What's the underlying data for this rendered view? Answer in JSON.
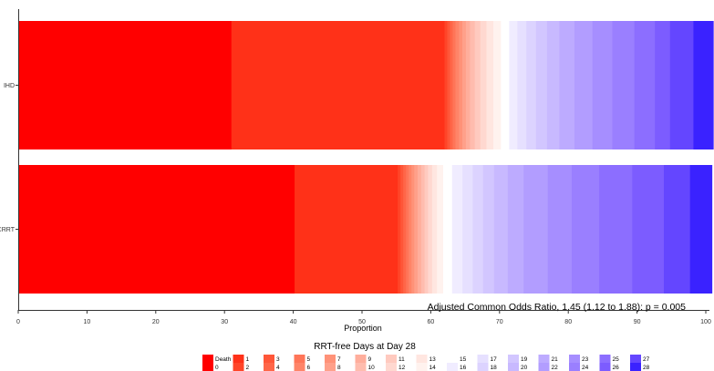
{
  "chart_data": {
    "type": "bar",
    "orientation": "horizontal",
    "stacked": true,
    "xlabel": "Proportion",
    "xlim": [
      0,
      100
    ],
    "xticks": [
      0,
      10,
      20,
      30,
      40,
      50,
      60,
      70,
      80,
      90,
      100
    ],
    "categories": [
      "IHD",
      "CRRT"
    ],
    "grid": false,
    "legend_title": "RRT-free Days at Day 28",
    "legend_position": "bottom",
    "annotation": "Adjusted Common Odds Ratio, 1.45 (1.12 to 1.88): p = 0.005",
    "series": [
      {
        "name": "Death",
        "color": "#FF0000",
        "values": [
          31.0,
          40.2
        ]
      },
      {
        "name": "0",
        "color": "#FF0000",
        "values": [
          0.0,
          0.0
        ]
      },
      {
        "name": "1",
        "color": "#FF3118",
        "values": [
          31.0,
          15.0
        ]
      },
      {
        "name": "2",
        "color": "#FF4528",
        "values": [
          0.4,
          0.4
        ]
      },
      {
        "name": "3",
        "color": "#FF5638",
        "values": [
          0.4,
          0.4
        ]
      },
      {
        "name": "4",
        "color": "#FF6648",
        "values": [
          0.4,
          0.4
        ]
      },
      {
        "name": "5",
        "color": "#FF7558",
        "values": [
          0.4,
          0.4
        ]
      },
      {
        "name": "6",
        "color": "#FF8468",
        "values": [
          0.5,
          0.4
        ]
      },
      {
        "name": "7",
        "color": "#FF9278",
        "values": [
          0.5,
          0.4
        ]
      },
      {
        "name": "8",
        "color": "#FFA08A",
        "values": [
          0.5,
          0.5
        ]
      },
      {
        "name": "9",
        "color": "#FFAE9C",
        "values": [
          0.6,
          0.5
        ]
      },
      {
        "name": "10",
        "color": "#FFBCAE",
        "values": [
          0.7,
          0.5
        ]
      },
      {
        "name": "11",
        "color": "#FFCABF",
        "values": [
          0.8,
          0.5
        ]
      },
      {
        "name": "12",
        "color": "#FFD8D0",
        "values": [
          0.9,
          0.6
        ]
      },
      {
        "name": "13",
        "color": "#FFE6E0",
        "values": [
          1.0,
          0.7
        ]
      },
      {
        "name": "14",
        "color": "#FFF2EE",
        "values": [
          1.1,
          0.9
        ]
      },
      {
        "name": "15",
        "color": "#FFFFFF",
        "values": [
          1.2,
          1.3
        ]
      },
      {
        "name": "16",
        "color": "#F0ECFF",
        "values": [
          1.2,
          1.5
        ]
      },
      {
        "name": "17",
        "color": "#E6E0FF",
        "values": [
          1.3,
          1.5
        ]
      },
      {
        "name": "18",
        "color": "#DCD3FF",
        "values": [
          1.4,
          1.5
        ]
      },
      {
        "name": "19",
        "color": "#D2C6FF",
        "values": [
          1.6,
          1.6
        ]
      },
      {
        "name": "20",
        "color": "#C8B9FF",
        "values": [
          1.8,
          2.0
        ]
      },
      {
        "name": "21",
        "color": "#BDABFF",
        "values": [
          2.2,
          2.3
        ]
      },
      {
        "name": "22",
        "color": "#B29DFF",
        "values": [
          2.6,
          3.5
        ]
      },
      {
        "name": "23",
        "color": "#A68EFF",
        "values": [
          2.9,
          3.5
        ]
      },
      {
        "name": "24",
        "color": "#9A7FFF",
        "values": [
          3.2,
          4.0
        ]
      },
      {
        "name": "25",
        "color": "#8C6EFF",
        "values": [
          3.0,
          4.8
        ]
      },
      {
        "name": "26",
        "color": "#7C5CFF",
        "values": [
          2.2,
          4.6
        ]
      },
      {
        "name": "27",
        "color": "#6446FF",
        "values": [
          3.4,
          3.8
        ]
      },
      {
        "name": "28",
        "color": "#3A22FF",
        "values": [
          2.9,
          3.2
        ]
      }
    ]
  }
}
